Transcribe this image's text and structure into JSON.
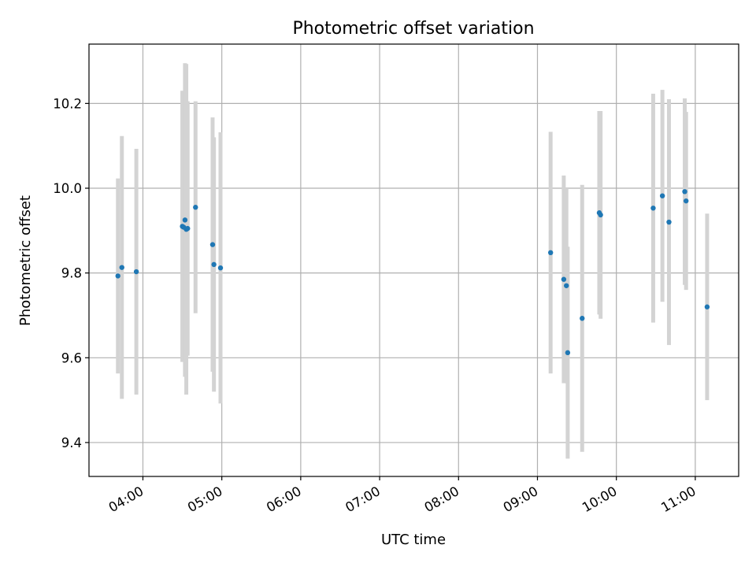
{
  "chart_data": {
    "type": "scatter",
    "title": "Photometric offset variation",
    "xlabel": "UTC time",
    "ylabel": "Photometric offset",
    "x_ticks": [
      "04:00",
      "05:00",
      "06:00",
      "07:00",
      "08:00",
      "09:00",
      "10:00",
      "11:00"
    ],
    "y_ticks": [
      "9.4",
      "9.6",
      "9.8",
      "10.0",
      "10.2"
    ],
    "y_tick_values": [
      9.4,
      9.6,
      9.8,
      10.0,
      10.2
    ],
    "xlim": [
      "03:19",
      "11:33"
    ],
    "ylim": [
      9.32,
      10.34
    ],
    "grid": true,
    "legend": "none",
    "colors": {
      "points": "#1f77b4",
      "errorbars": "#d3d3d3",
      "grid": "#b0b0b0"
    },
    "points": [
      {
        "x": "03:41",
        "y": 9.793,
        "err": 0.23
      },
      {
        "x": "03:44",
        "y": 9.813,
        "err": 0.31
      },
      {
        "x": "03:55",
        "y": 9.803,
        "err": 0.29
      },
      {
        "x": "04:30",
        "y": 9.91,
        "err": 0.32
      },
      {
        "x": "04:31",
        "y": 9.908,
        "err": 0.3
      },
      {
        "x": "04:32",
        "y": 9.925,
        "err": 0.37
      },
      {
        "x": "04:33",
        "y": 9.903,
        "err": 0.39
      },
      {
        "x": "04:34",
        "y": 9.905,
        "err": 0.3
      },
      {
        "x": "04:40",
        "y": 9.955,
        "err": 0.25
      },
      {
        "x": "04:53",
        "y": 9.867,
        "err": 0.3
      },
      {
        "x": "04:54",
        "y": 9.82,
        "err": 0.3
      },
      {
        "x": "04:59",
        "y": 9.812,
        "err": 0.32
      },
      {
        "x": "09:10",
        "y": 9.848,
        "err": 0.285
      },
      {
        "x": "09:20",
        "y": 9.785,
        "err": 0.245
      },
      {
        "x": "09:22",
        "y": 9.77,
        "err": 0.23
      },
      {
        "x": "09:23",
        "y": 9.612,
        "err": 0.25
      },
      {
        "x": "09:34",
        "y": 9.693,
        "err": 0.315
      },
      {
        "x": "09:47",
        "y": 9.942,
        "err": 0.24
      },
      {
        "x": "09:48",
        "y": 9.937,
        "err": 0.245
      },
      {
        "x": "10:28",
        "y": 9.953,
        "err": 0.27
      },
      {
        "x": "10:35",
        "y": 9.982,
        "err": 0.25
      },
      {
        "x": "10:40",
        "y": 9.92,
        "err": 0.29
      },
      {
        "x": "10:52",
        "y": 9.992,
        "err": 0.22
      },
      {
        "x": "10:53",
        "y": 9.97,
        "err": 0.21
      },
      {
        "x": "11:09",
        "y": 9.72,
        "err": 0.22
      }
    ]
  }
}
